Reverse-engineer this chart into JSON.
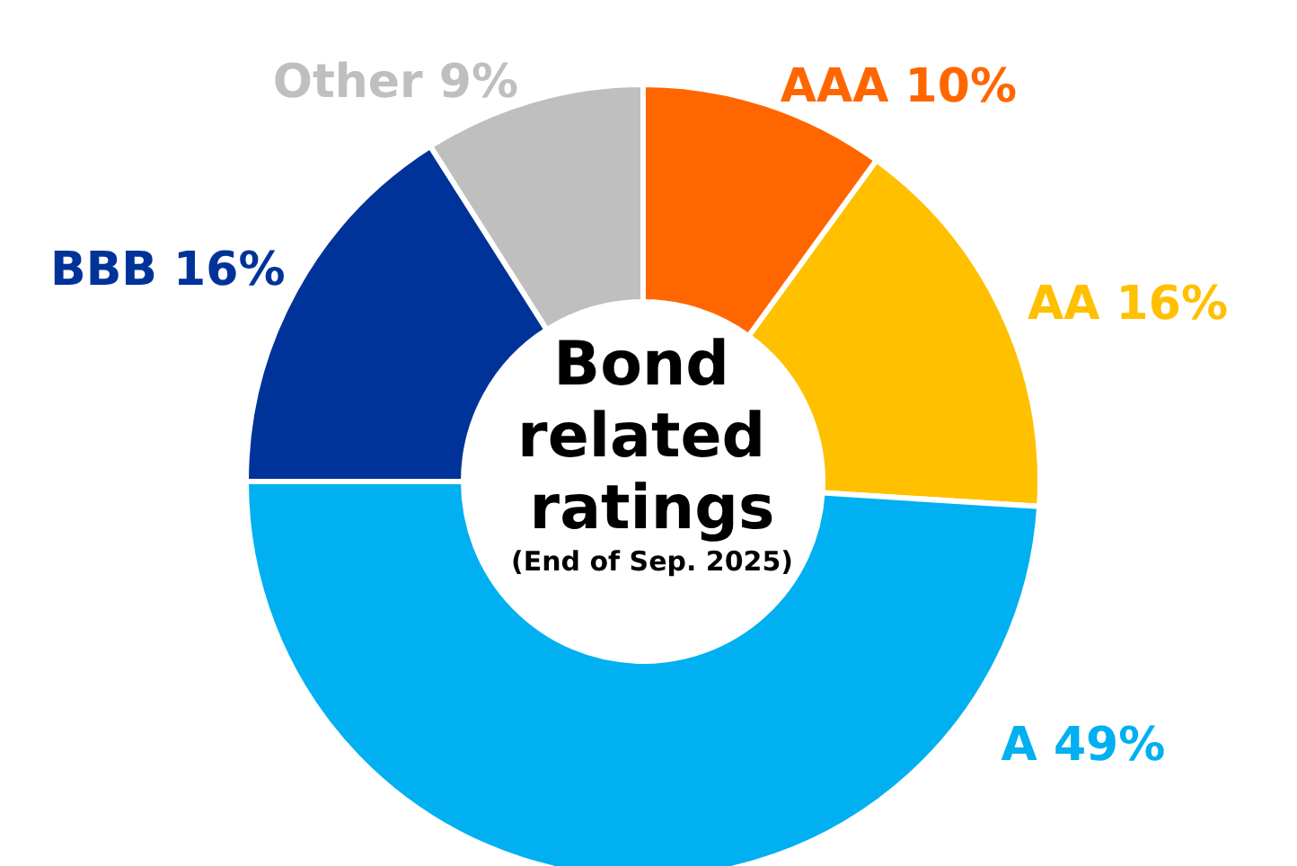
{
  "chart_data": {
    "type": "donut",
    "title": "Bond related ratings",
    "subtitle": "(End of Sep. 2025)",
    "categories": [
      "AAA",
      "AA",
      "A",
      "BBB",
      "Other"
    ],
    "values": [
      10,
      16,
      49,
      16,
      9
    ],
    "value_labels": [
      "10%",
      "16%",
      "49%",
      "16%",
      "9%"
    ],
    "colors": [
      "#ff6600",
      "#ffc000",
      "#00b0f0",
      "#003399",
      "#bfbfbf"
    ],
    "legend": false
  }
}
